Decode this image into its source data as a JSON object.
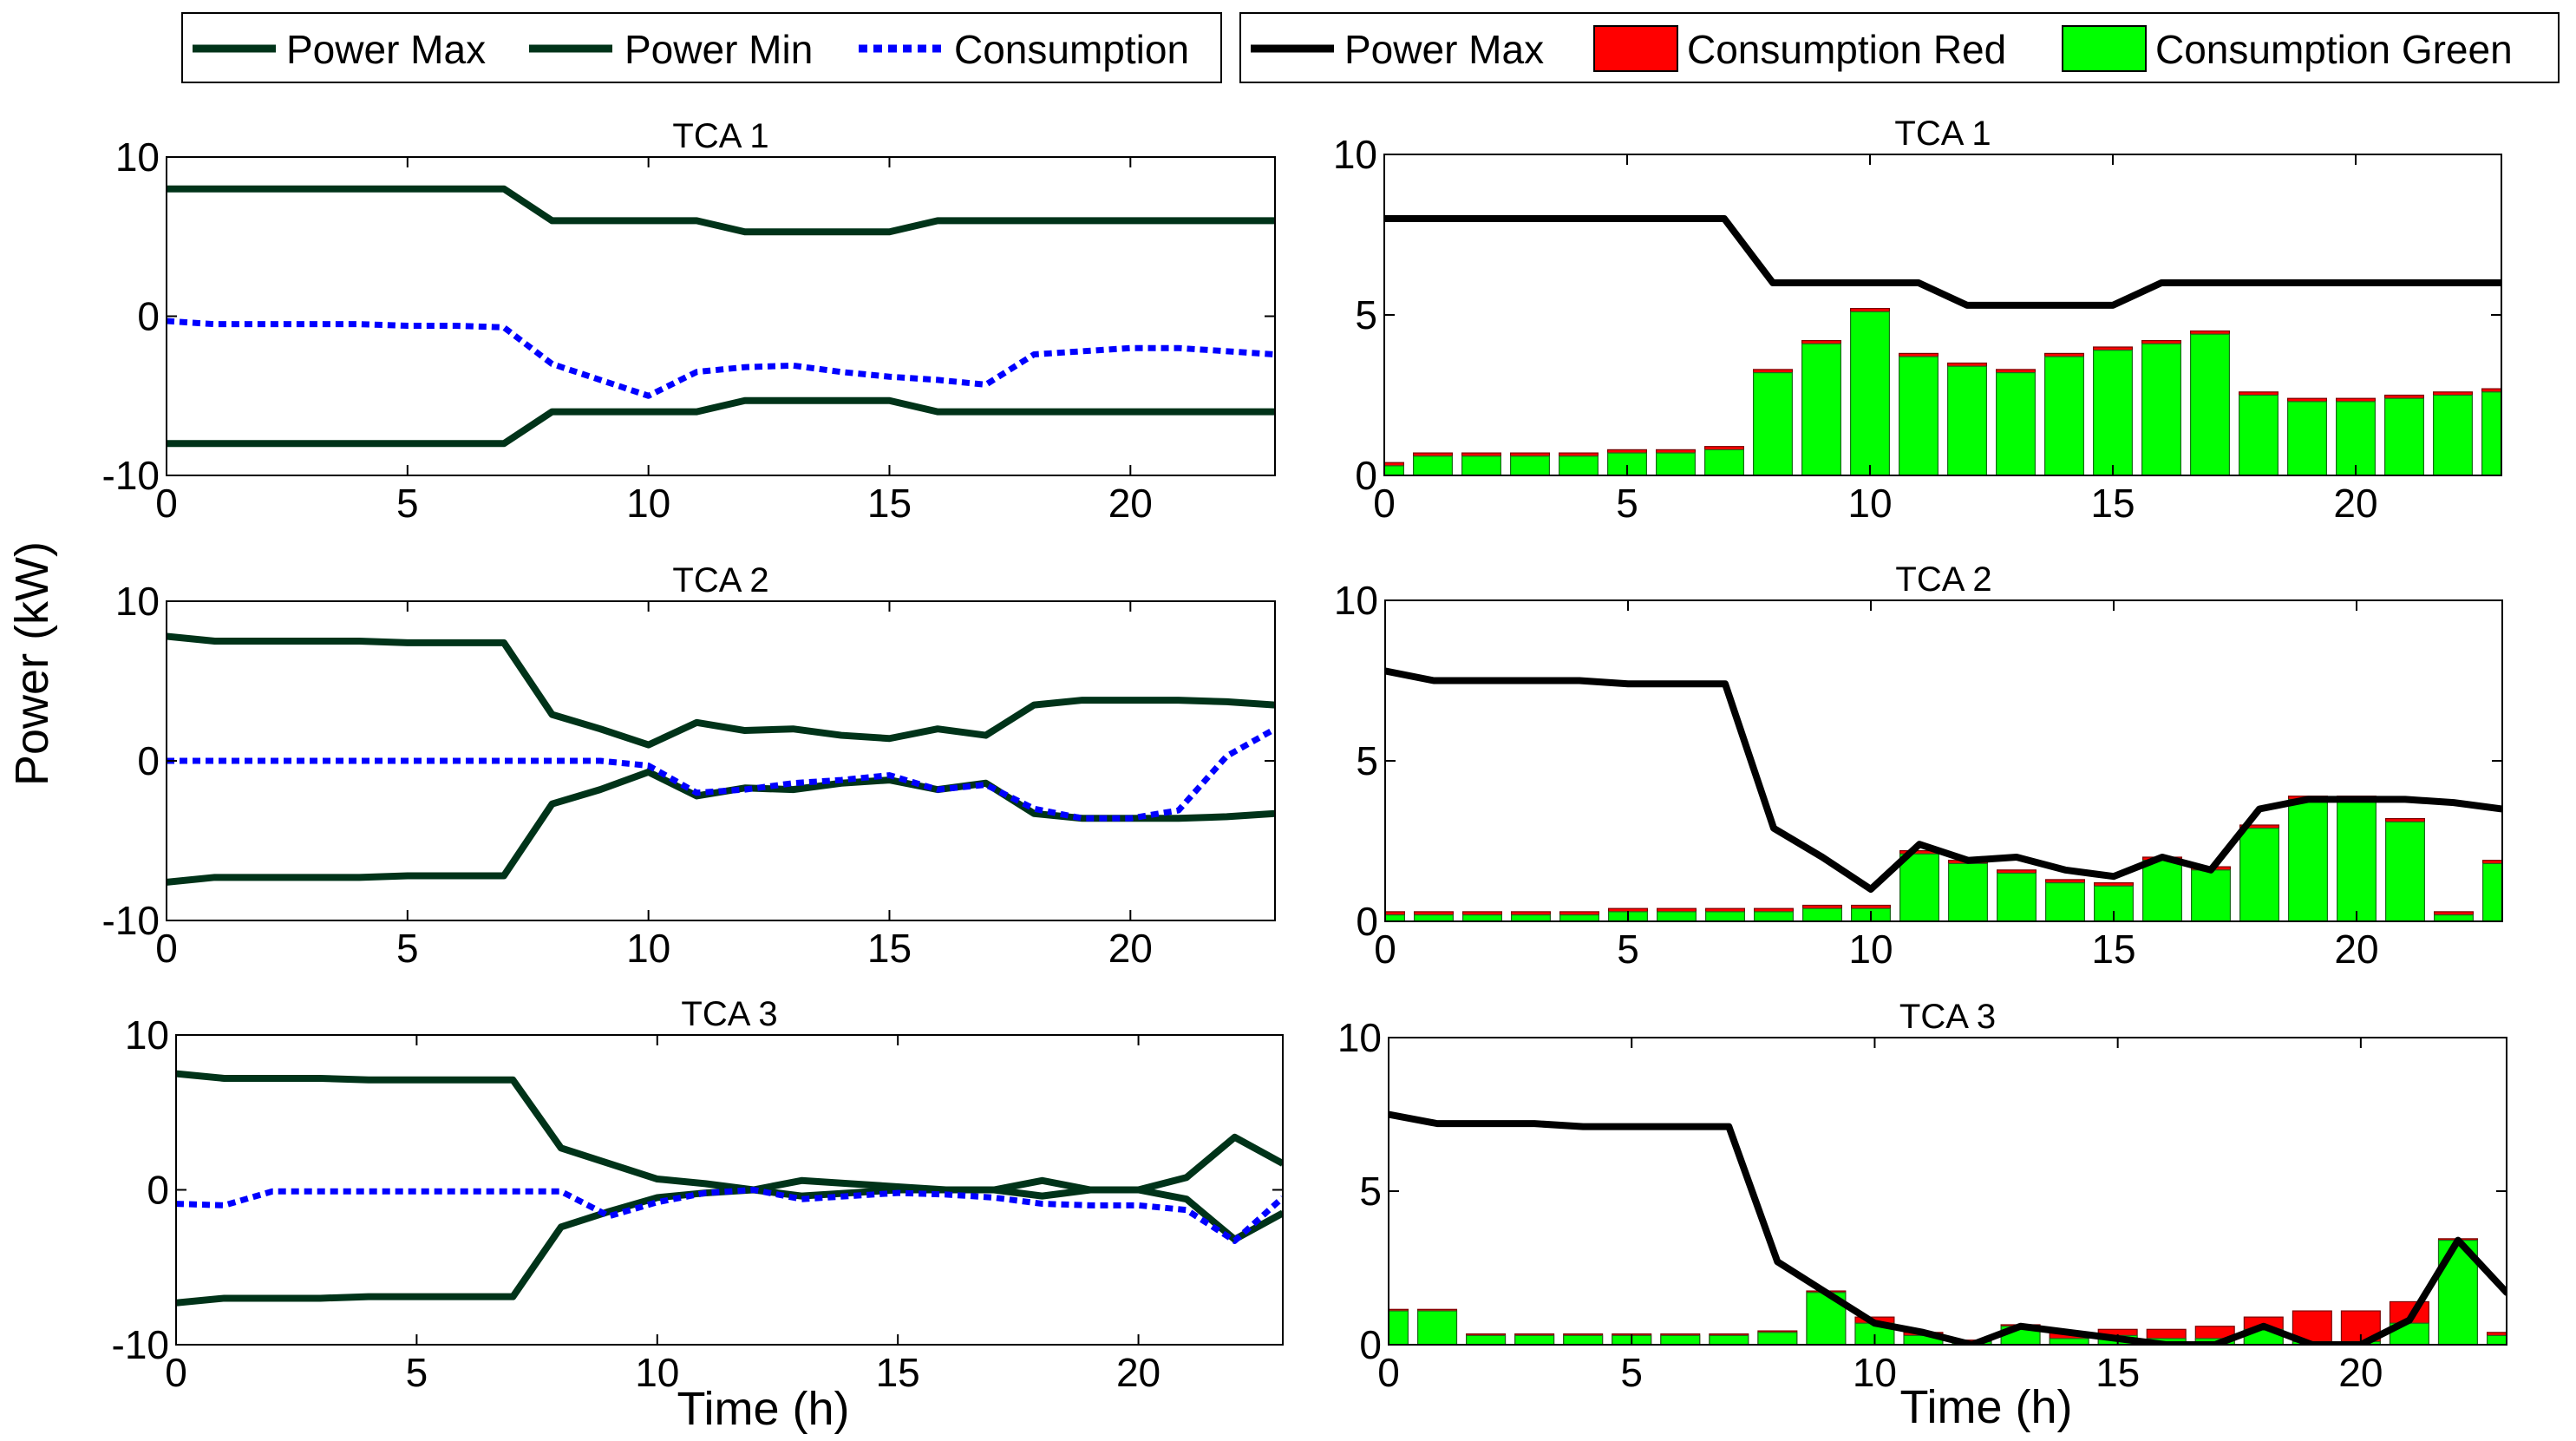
{
  "figure": {
    "ylabel": "Power (kW)",
    "xlabel": "Time (h)"
  },
  "legends": {
    "left": [
      {
        "label": "Power Max",
        "style": "solid",
        "color": "#003319"
      },
      {
        "label": "Power Min",
        "style": "solid",
        "color": "#003319"
      },
      {
        "label": "Consumption",
        "style": "dotted",
        "color": "#0000ff"
      }
    ],
    "right": [
      {
        "label": "Power Max",
        "style": "solid",
        "color": "#000000"
      },
      {
        "label": "Consumption Red",
        "style": "patch",
        "color": "#ff0000"
      },
      {
        "label": "Consumption Green",
        "style": "patch",
        "color": "#00ff00"
      }
    ]
  },
  "chart_data": [
    {
      "id": "left-tca1",
      "type": "line",
      "title": "TCA 1",
      "xlim": [
        0,
        23
      ],
      "ylim": [
        -10,
        10
      ],
      "xticks": [
        0,
        5,
        10,
        15,
        20
      ],
      "yticks": [
        -10,
        0,
        10
      ],
      "x": [
        0,
        1,
        2,
        3,
        4,
        5,
        6,
        7,
        8,
        9,
        10,
        11,
        12,
        13,
        14,
        15,
        16,
        17,
        18,
        19,
        20,
        21,
        22,
        23
      ],
      "series": [
        {
          "name": "Power Max",
          "color": "#003319",
          "values": [
            8.0,
            8.0,
            8.0,
            8.0,
            8.0,
            8.0,
            8.0,
            8.0,
            6.0,
            6.0,
            6.0,
            6.0,
            5.3,
            5.3,
            5.3,
            5.3,
            6.0,
            6.0,
            6.0,
            6.0,
            6.0,
            6.0,
            6.0,
            6.0
          ]
        },
        {
          "name": "Power Min",
          "color": "#003319",
          "values": [
            -8.0,
            -8.0,
            -8.0,
            -8.0,
            -8.0,
            -8.0,
            -8.0,
            -8.0,
            -6.0,
            -6.0,
            -6.0,
            -6.0,
            -5.3,
            -5.3,
            -5.3,
            -5.3,
            -6.0,
            -6.0,
            -6.0,
            -6.0,
            -6.0,
            -6.0,
            -6.0,
            -6.0
          ]
        },
        {
          "name": "Consumption",
          "color": "#0000ff",
          "dashed": true,
          "values": [
            -0.3,
            -0.5,
            -0.5,
            -0.5,
            -0.5,
            -0.6,
            -0.6,
            -0.7,
            -3.0,
            -4.0,
            -5.0,
            -3.5,
            -3.2,
            -3.1,
            -3.5,
            -3.8,
            -4.0,
            -4.3,
            -2.4,
            -2.2,
            -2.0,
            -2.0,
            -2.2,
            -2.4
          ]
        }
      ]
    },
    {
      "id": "left-tca2",
      "type": "line",
      "title": "TCA 2",
      "xlim": [
        0,
        23
      ],
      "ylim": [
        -10,
        10
      ],
      "xticks": [
        0,
        5,
        10,
        15,
        20
      ],
      "yticks": [
        -10,
        0,
        10
      ],
      "x": [
        0,
        1,
        2,
        3,
        4,
        5,
        6,
        7,
        8,
        9,
        10,
        11,
        12,
        13,
        14,
        15,
        16,
        17,
        18,
        19,
        20,
        21,
        22,
        23
      ],
      "series": [
        {
          "name": "Power Max",
          "color": "#003319",
          "values": [
            7.8,
            7.5,
            7.5,
            7.5,
            7.5,
            7.4,
            7.4,
            7.4,
            2.9,
            2.0,
            1.0,
            2.4,
            1.9,
            2.0,
            1.6,
            1.4,
            2.0,
            1.6,
            3.5,
            3.8,
            3.8,
            3.8,
            3.7,
            3.5
          ]
        },
        {
          "name": "Power Min",
          "color": "#003319",
          "values": [
            -7.6,
            -7.3,
            -7.3,
            -7.3,
            -7.3,
            -7.2,
            -7.2,
            -7.2,
            -2.7,
            -1.8,
            -0.7,
            -2.2,
            -1.7,
            -1.8,
            -1.4,
            -1.2,
            -1.8,
            -1.4,
            -3.3,
            -3.6,
            -3.6,
            -3.6,
            -3.5,
            -3.3
          ]
        },
        {
          "name": "Consumption",
          "color": "#0000ff",
          "dashed": true,
          "values": [
            0.0,
            0.0,
            0.0,
            0.0,
            0.0,
            0.0,
            0.0,
            0.0,
            0.0,
            0.0,
            -0.3,
            -2.0,
            -1.8,
            -1.4,
            -1.2,
            -0.9,
            -1.8,
            -1.5,
            -3.0,
            -3.6,
            -3.6,
            -3.1,
            0.3,
            2.0
          ]
        }
      ]
    },
    {
      "id": "left-tca3",
      "type": "line",
      "title": "TCA 3",
      "xlim": [
        0,
        23
      ],
      "ylim": [
        -10,
        10
      ],
      "xticks": [
        0,
        5,
        10,
        15,
        20
      ],
      "yticks": [
        -10,
        0,
        10
      ],
      "x": [
        0,
        1,
        2,
        3,
        4,
        5,
        6,
        7,
        8,
        9,
        10,
        11,
        12,
        13,
        14,
        15,
        16,
        17,
        18,
        19,
        20,
        21,
        22,
        23
      ],
      "series": [
        {
          "name": "Power Max",
          "color": "#003319",
          "values": [
            7.5,
            7.2,
            7.2,
            7.2,
            7.1,
            7.1,
            7.1,
            7.1,
            2.7,
            1.7,
            0.7,
            0.4,
            0.0,
            0.6,
            0.4,
            0.2,
            0.0,
            0.0,
            0.6,
            0.0,
            0.0,
            0.8,
            3.4,
            1.7
          ]
        },
        {
          "name": "Power Min",
          "color": "#003319",
          "values": [
            -7.3,
            -7.0,
            -7.0,
            -7.0,
            -6.9,
            -6.9,
            -6.9,
            -6.9,
            -2.4,
            -1.4,
            -0.5,
            -0.2,
            0.0,
            -0.4,
            -0.2,
            0.0,
            0.0,
            0.0,
            -0.4,
            0.0,
            0.0,
            -0.6,
            -3.2,
            -1.5
          ]
        },
        {
          "name": "Consumption",
          "color": "#0000ff",
          "dashed": true,
          "values": [
            -0.9,
            -1.0,
            -0.1,
            -0.1,
            -0.1,
            -0.1,
            -0.1,
            -0.1,
            -0.1,
            -1.7,
            -0.8,
            -0.2,
            0.0,
            -0.6,
            -0.4,
            -0.2,
            -0.3,
            -0.5,
            -0.9,
            -1.0,
            -1.0,
            -1.3,
            -3.3,
            -0.5
          ]
        }
      ]
    },
    {
      "id": "right-tca1",
      "type": "bar",
      "title": "TCA 1",
      "xlim": [
        0,
        23
      ],
      "ylim": [
        0,
        10
      ],
      "xticks": [
        0,
        5,
        10,
        15,
        20
      ],
      "yticks": [
        0,
        5,
        10
      ],
      "x": [
        0,
        1,
        2,
        3,
        4,
        5,
        6,
        7,
        8,
        9,
        10,
        11,
        12,
        13,
        14,
        15,
        16,
        17,
        18,
        19,
        20,
        21,
        22,
        23
      ],
      "line": {
        "name": "Power Max",
        "color": "#000000",
        "values": [
          8.0,
          8.0,
          8.0,
          8.0,
          8.0,
          8.0,
          8.0,
          8.0,
          6.0,
          6.0,
          6.0,
          6.0,
          5.3,
          5.3,
          5.3,
          5.3,
          6.0,
          6.0,
          6.0,
          6.0,
          6.0,
          6.0,
          6.0,
          6.0
        ]
      },
      "series": [
        {
          "name": "Consumption Green",
          "color": "#00ff00",
          "values": [
            0.3,
            0.6,
            0.6,
            0.6,
            0.6,
            0.7,
            0.7,
            0.8,
            3.2,
            4.1,
            5.1,
            3.7,
            3.4,
            3.2,
            3.7,
            3.9,
            4.1,
            4.4,
            2.5,
            2.3,
            2.3,
            2.4,
            2.5,
            2.6
          ]
        },
        {
          "name": "Consumption Red",
          "color": "#ff0000",
          "values": [
            0.1,
            0.1,
            0.1,
            0.1,
            0.1,
            0.1,
            0.1,
            0.1,
            0.1,
            0.1,
            0.1,
            0.1,
            0.1,
            0.1,
            0.1,
            0.1,
            0.1,
            0.1,
            0.1,
            0.1,
            0.1,
            0.1,
            0.1,
            0.1
          ]
        }
      ]
    },
    {
      "id": "right-tca2",
      "type": "bar",
      "title": "TCA 2",
      "xlim": [
        0,
        23
      ],
      "ylim": [
        0,
        10
      ],
      "xticks": [
        0,
        5,
        10,
        15,
        20
      ],
      "yticks": [
        0,
        5,
        10
      ],
      "x": [
        0,
        1,
        2,
        3,
        4,
        5,
        6,
        7,
        8,
        9,
        10,
        11,
        12,
        13,
        14,
        15,
        16,
        17,
        18,
        19,
        20,
        21,
        22,
        23
      ],
      "line": {
        "name": "Power Max",
        "color": "#000000",
        "values": [
          7.8,
          7.5,
          7.5,
          7.5,
          7.5,
          7.4,
          7.4,
          7.4,
          2.9,
          2.0,
          1.0,
          2.4,
          1.9,
          2.0,
          1.6,
          1.4,
          2.0,
          1.6,
          3.5,
          3.8,
          3.8,
          3.8,
          3.7,
          3.5
        ]
      },
      "series": [
        {
          "name": "Consumption Green",
          "color": "#00ff00",
          "values": [
            0.2,
            0.2,
            0.2,
            0.2,
            0.2,
            0.3,
            0.3,
            0.3,
            0.3,
            0.4,
            0.4,
            2.1,
            1.8,
            1.5,
            1.2,
            1.1,
            1.9,
            1.6,
            2.9,
            3.8,
            3.8,
            3.1,
            0.2,
            1.8
          ]
        },
        {
          "name": "Consumption Red",
          "color": "#ff0000",
          "values": [
            0.1,
            0.1,
            0.1,
            0.1,
            0.1,
            0.1,
            0.1,
            0.1,
            0.1,
            0.1,
            0.1,
            0.1,
            0.1,
            0.1,
            0.1,
            0.1,
            0.1,
            0.1,
            0.1,
            0.1,
            0.1,
            0.1,
            0.1,
            0.1
          ]
        }
      ]
    },
    {
      "id": "right-tca3",
      "type": "bar",
      "title": "TCA 3",
      "xlim": [
        0,
        23
      ],
      "ylim": [
        0,
        10
      ],
      "xticks": [
        0,
        5,
        10,
        15,
        20
      ],
      "yticks": [
        0,
        5,
        10
      ],
      "x": [
        0,
        1,
        2,
        3,
        4,
        5,
        6,
        7,
        8,
        9,
        10,
        11,
        12,
        13,
        14,
        15,
        16,
        17,
        18,
        19,
        20,
        21,
        22,
        23
      ],
      "line": {
        "name": "Power Max",
        "color": "#000000",
        "values": [
          7.5,
          7.2,
          7.2,
          7.2,
          7.1,
          7.1,
          7.1,
          7.1,
          2.7,
          1.7,
          0.7,
          0.4,
          0.0,
          0.6,
          0.4,
          0.2,
          0.0,
          0.0,
          0.6,
          0.0,
          0.0,
          0.8,
          3.4,
          1.7
        ]
      },
      "series": [
        {
          "name": "Consumption Green",
          "color": "#00ff00",
          "values": [
            1.1,
            1.1,
            0.3,
            0.3,
            0.3,
            0.3,
            0.3,
            0.3,
            0.4,
            1.7,
            0.7,
            0.3,
            0.1,
            0.6,
            0.2,
            0.3,
            0.2,
            0.2,
            0.5,
            0.1,
            0.1,
            0.7,
            3.4,
            0.3
          ]
        },
        {
          "name": "Consumption Red",
          "color": "#ff0000",
          "values": [
            0.05,
            0.05,
            0.05,
            0.05,
            0.05,
            0.05,
            0.05,
            0.05,
            0.05,
            0.05,
            0.2,
            0.1,
            0.05,
            0.05,
            0.2,
            0.2,
            0.3,
            0.4,
            0.4,
            1.0,
            1.0,
            0.7,
            0.05,
            0.1
          ]
        }
      ]
    }
  ]
}
